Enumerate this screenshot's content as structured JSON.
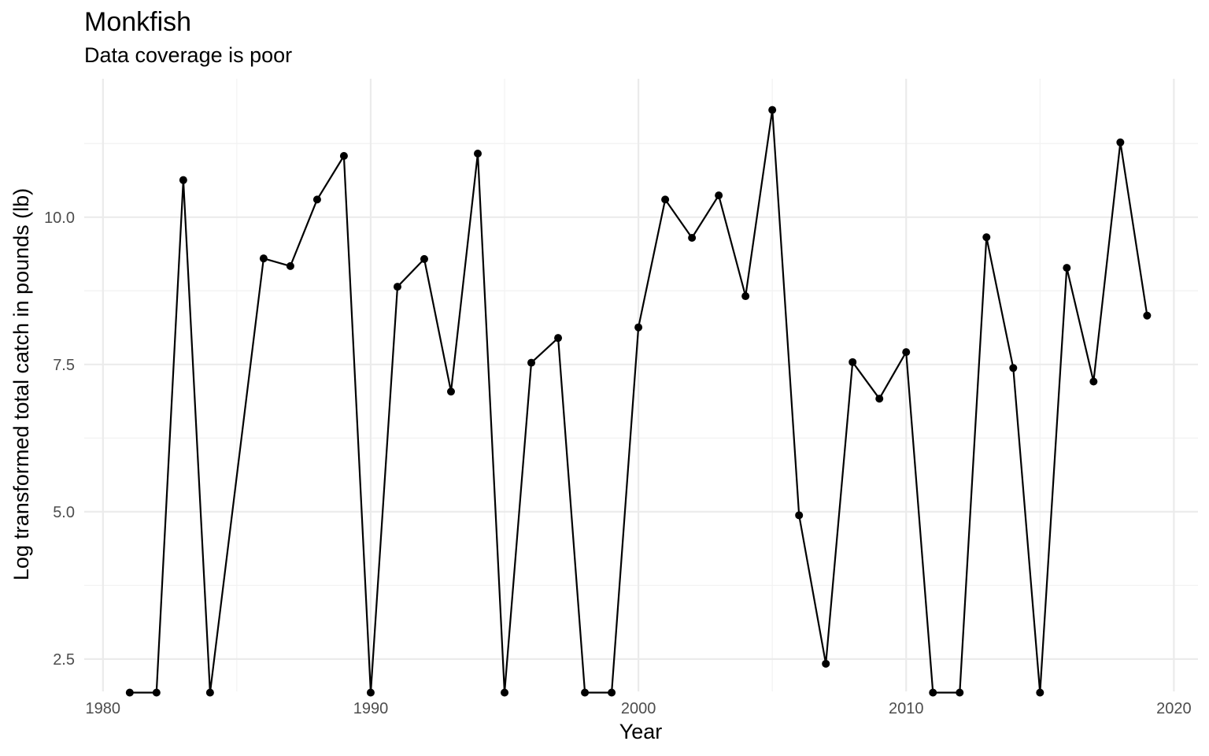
{
  "chart_data": {
    "type": "line",
    "title": "Monkfish",
    "subtitle": "Data coverage is poor",
    "xlabel": "Year",
    "ylabel": "Log transformed  total catch in pounds (lb)",
    "xlim": [
      1979.3,
      2020.9
    ],
    "ylim": [
      1.95,
      12.35
    ],
    "x_ticks": [
      1980,
      1990,
      2000,
      2010,
      2020
    ],
    "x_minor_ticks": [
      1985,
      1995,
      2005,
      2015
    ],
    "y_ticks": [
      2.5,
      5.0,
      7.5,
      10.0
    ],
    "y_tick_labels": [
      "2.5",
      "5.0",
      "7.5",
      "10.0"
    ],
    "y_minor_ticks": [
      3.75,
      6.25,
      8.75,
      11.25
    ],
    "grid": true,
    "legend": "none",
    "colors": {
      "line": "#000000",
      "grid": "#ebebeb",
      "tick_text": "#4d4d4d"
    },
    "series": [
      {
        "x": [
          1981,
          1982,
          1983,
          1984,
          1986,
          1987,
          1988,
          1989,
          1990,
          1991,
          1992,
          1993,
          1994,
          1995,
          1996,
          1997,
          1998,
          1999,
          2000,
          2001,
          2002,
          2003,
          2004,
          2005,
          2006,
          2007,
          2008,
          2009,
          2010,
          2011,
          2012,
          2013,
          2014,
          2015,
          2016,
          2017,
          2018,
          2019
        ],
        "values": [
          1.93,
          1.93,
          10.63,
          1.93,
          9.3,
          9.17,
          10.3,
          11.04,
          1.93,
          8.82,
          9.29,
          7.04,
          11.08,
          1.93,
          7.53,
          7.95,
          1.93,
          1.93,
          8.13,
          10.3,
          9.65,
          10.37,
          8.66,
          11.82,
          4.94,
          2.42,
          7.54,
          6.92,
          7.71,
          1.93,
          1.93,
          9.66,
          7.44,
          1.93,
          9.14,
          7.21,
          11.27,
          8.33
        ]
      }
    ]
  }
}
